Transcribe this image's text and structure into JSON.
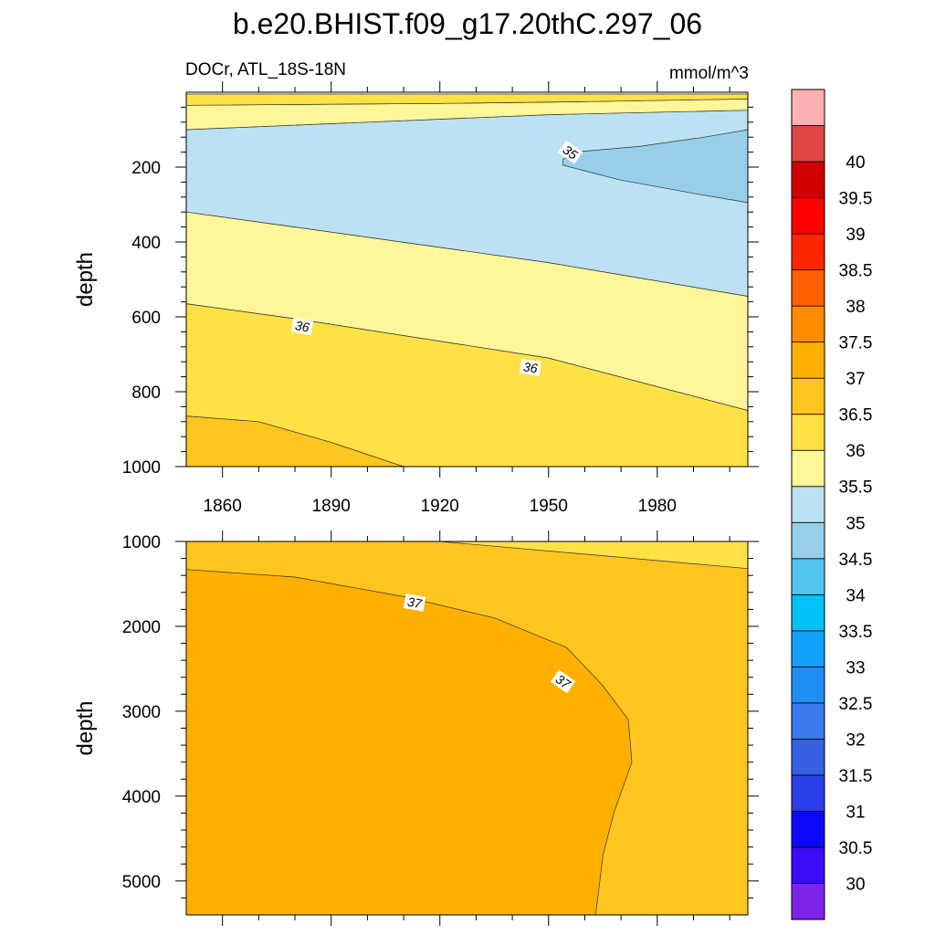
{
  "chart_data": {
    "type": "contour",
    "title": "b.e20.BHIST.f09_g17.20thC.297_06",
    "subtitle_left": "DOCr, ATL_18S-18N",
    "units": "mmol/m^3",
    "x": {
      "range": [
        1850,
        2005
      ],
      "ticks": [
        1860,
        1890,
        1920,
        1950,
        1980
      ],
      "tick_labels": [
        "1860",
        "1890",
        "1920",
        "1950",
        "1980"
      ]
    },
    "panels": [
      {
        "id": "upper",
        "ylabel": "depth",
        "ylim": [
          0,
          1000
        ],
        "yticks": [
          200,
          400,
          600,
          800,
          1000
        ],
        "ytick_labels": [
          "200",
          "400",
          "600",
          "800",
          "1000"
        ],
        "regions": [
          {
            "level": 36.5,
            "points": [
              [
                1850,
                1000
              ],
              [
                1850,
                865
              ],
              [
                1870,
                880
              ],
              [
                1890,
                935
              ],
              [
                1910,
                1000
              ]
            ]
          },
          {
            "level": 36.0,
            "points": [
              [
                1850,
                865
              ],
              [
                1850,
                565
              ],
              [
                1880,
                605
              ],
              [
                1950,
                710
              ],
              [
                2005,
                850
              ],
              [
                2005,
                1000
              ],
              [
                1910,
                1000
              ],
              [
                1890,
                935
              ],
              [
                1870,
                880
              ]
            ]
          },
          {
            "level": 35.5,
            "points": [
              [
                1850,
                565
              ],
              [
                1850,
                320
              ],
              [
                1880,
                360
              ],
              [
                1950,
                455
              ],
              [
                2005,
                545
              ],
              [
                2005,
                850
              ],
              [
                1950,
                710
              ],
              [
                1880,
                605
              ]
            ]
          },
          {
            "level": 35.0,
            "points": [
              [
                1850,
                320
              ],
              [
                1850,
                100
              ],
              [
                1900,
                80
              ],
              [
                1950,
                60
              ],
              [
                2005,
                48
              ],
              [
                2005,
                545
              ],
              [
                1950,
                455
              ],
              [
                1880,
                360
              ]
            ]
          },
          {
            "level": 35.5,
            "points": [
              [
                1850,
                100
              ],
              [
                1850,
                35
              ],
              [
                1920,
                30
              ],
              [
                1960,
                25
              ],
              [
                2005,
                18
              ],
              [
                2005,
                48
              ],
              [
                1950,
                60
              ],
              [
                1900,
                80
              ]
            ]
          },
          {
            "level": 36.0,
            "points": [
              [
                1850,
                35
              ],
              [
                1850,
                5
              ],
              [
                2005,
                5
              ],
              [
                2005,
                18
              ],
              [
                1960,
                25
              ],
              [
                1920,
                30
              ]
            ]
          },
          {
            "level": 34.5,
            "points": [
              [
                1954,
                195
              ],
              [
                1954,
                180
              ],
              [
                1957,
                160
              ],
              [
                1975,
                145
              ],
              [
                1993,
                120
              ],
              [
                2005,
                100
              ],
              [
                2005,
                295
              ],
              [
                1990,
                270
              ],
              [
                1970,
                235
              ],
              [
                1960,
                210
              ]
            ]
          }
        ],
        "contour_labels": [
          {
            "x": 1882,
            "y": 625,
            "text": "36",
            "angle": 10
          },
          {
            "x": 1945,
            "y": 735,
            "text": "36",
            "angle": 8
          },
          {
            "x": 1956,
            "y": 160,
            "text": "35",
            "angle": 35
          }
        ]
      },
      {
        "id": "lower",
        "ylabel": "depth",
        "ylim": [
          1000,
          5400
        ],
        "yticks": [
          1000,
          2000,
          3000,
          4000,
          5000
        ],
        "ytick_labels": [
          "1000",
          "2000",
          "3000",
          "4000",
          "5000"
        ],
        "regions": [
          {
            "level": 36.5,
            "points": [
              [
                1850,
                1000
              ],
              [
                2005,
                1000
              ],
              [
                2005,
                5400
              ],
              [
                1850,
                5400
              ]
            ]
          },
          {
            "level": 37.0,
            "points": [
              [
                1850,
                1330
              ],
              [
                1880,
                1420
              ],
              [
                1910,
                1650
              ],
              [
                1935,
                1900
              ],
              [
                1955,
                2250
              ],
              [
                1965,
                2700
              ],
              [
                1972,
                3100
              ],
              [
                1973,
                3600
              ],
              [
                1968,
                4200
              ],
              [
                1965,
                4700
              ],
              [
                1963,
                5400
              ],
              [
                1850,
                5400
              ]
            ]
          },
          {
            "level": 36.0,
            "points": [
              [
                1920,
                1000
              ],
              [
                2005,
                1000
              ],
              [
                2005,
                1320
              ],
              [
                1960,
                1150
              ]
            ]
          }
        ],
        "contour_labels": [
          {
            "x": 1913,
            "y": 1720,
            "text": "37",
            "angle": 10
          },
          {
            "x": 1954,
            "y": 2650,
            "text": "37",
            "angle": 35
          }
        ]
      }
    ],
    "colorbar": {
      "boundaries": [
        29.5,
        30,
        30.5,
        31,
        31.5,
        32,
        32.5,
        33,
        33.5,
        34,
        34.5,
        35,
        35.5,
        36,
        36.5,
        37,
        37.5,
        38,
        38.5,
        39,
        39.5,
        40,
        40.5
      ],
      "colors": [
        "#7d24e8",
        "#3b0cf5",
        "#0a08f7",
        "#2a3ee8",
        "#3661e2",
        "#3b79ea",
        "#1f8ff5",
        "#11a1fc",
        "#00c2f8",
        "#53c5f1",
        "#97cfea",
        "#bce1f2",
        "#fff69a",
        "#fee144",
        "#fdc51e",
        "#feb000",
        "#fe8a00",
        "#fe5f00",
        "#fe2600",
        "#fe0000",
        "#d10000",
        "#de4545",
        "#ffb0b3"
      ],
      "label_values": [
        30,
        30.5,
        31,
        31.5,
        32,
        32.5,
        33,
        33.5,
        34,
        34.5,
        35,
        35.5,
        36,
        36.5,
        37,
        37.5,
        38,
        38.5,
        39,
        39.5,
        40
      ],
      "labels": [
        "30",
        "30.5",
        "31",
        "31.5",
        "32",
        "32.5",
        "33",
        "33.5",
        "34",
        "34.5",
        "35",
        "35.5",
        "36",
        "36.5",
        "37",
        "37.5",
        "38",
        "38.5",
        "39",
        "39.5",
        "40"
      ]
    }
  }
}
